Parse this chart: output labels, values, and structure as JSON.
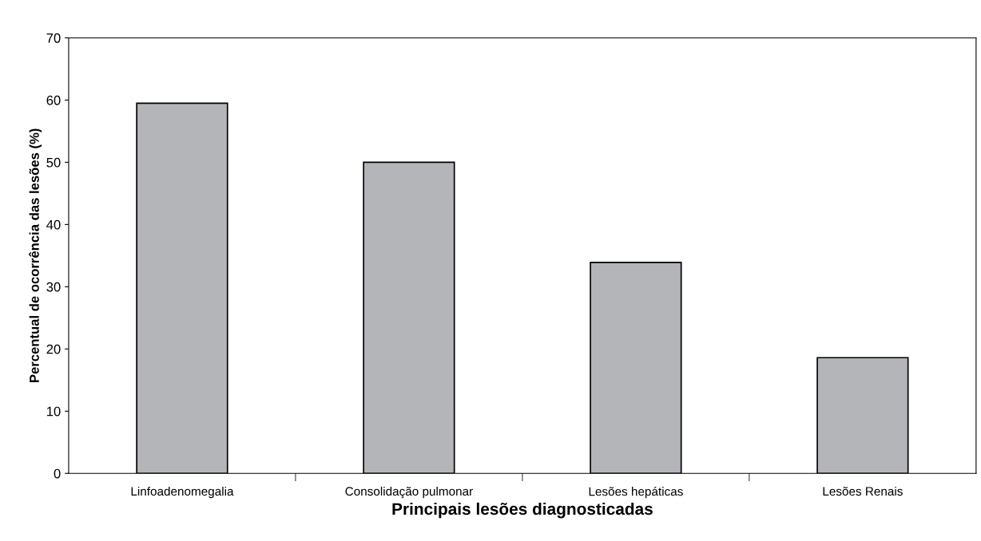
{
  "chart_data": {
    "type": "bar",
    "xlabel": "Principais lesões diagnosticadas",
    "ylabel": "Percentual de ocorrência das lesões (%)",
    "categories": [
      "Linfoadenomegalia",
      "Consolidação pulmonar",
      "Lesões hepáticas",
      "Lesões Renais"
    ],
    "values": [
      59.5,
      50,
      33.9,
      18.6
    ],
    "color": "#b4b5b9",
    "ylim": [
      0,
      70
    ],
    "yticks": [
      0,
      10,
      20,
      30,
      40,
      50,
      60,
      70
    ],
    "grid": false,
    "legend": false
  }
}
